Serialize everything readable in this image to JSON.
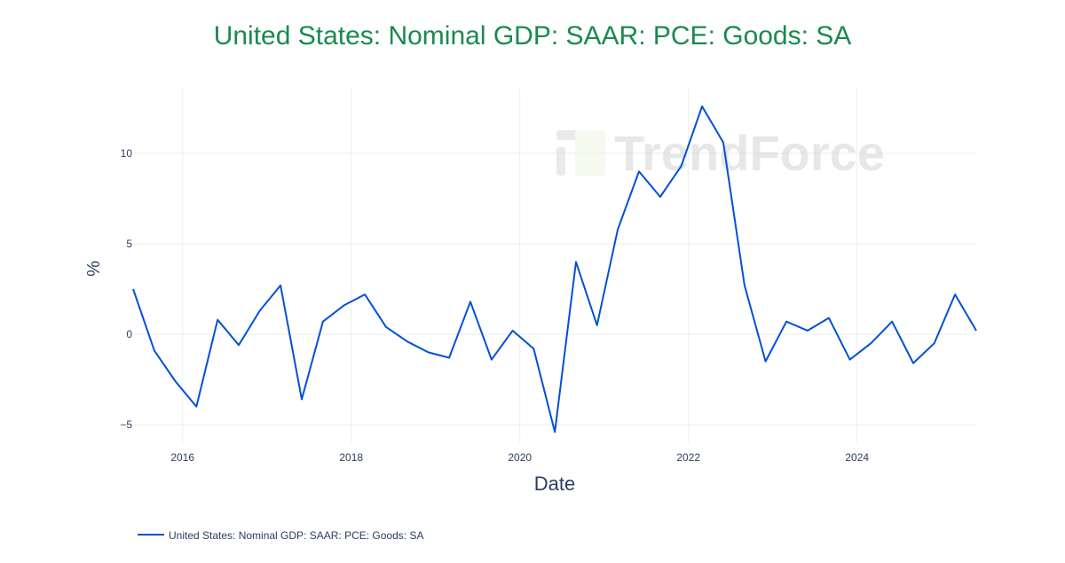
{
  "chart_data": {
    "type": "line",
    "title": "United States: Nominal GDP: SAAR: PCE: Goods: SA",
    "xlabel": "Date",
    "ylabel": "%",
    "xlim": [
      "2015-06-01",
      "2025-06-01"
    ],
    "ylim": [
      -5.9,
      13.3
    ],
    "x_ticks": [
      "2016",
      "2018",
      "2020",
      "2022",
      "2024"
    ],
    "y_ticks": [
      {
        "value": -5,
        "label": "−5"
      },
      {
        "value": 0,
        "label": "0"
      },
      {
        "value": 5,
        "label": "5"
      },
      {
        "value": 10,
        "label": "10"
      }
    ],
    "grid": true,
    "legend_position": "bottom-left",
    "watermark": "TrendForce",
    "colors": {
      "title": "#1a8a4f",
      "line": "#0050d8",
      "grid": "#eeeeee",
      "axis_text": "#2a3f5f"
    },
    "series": [
      {
        "name": "United States: Nominal GDP: SAAR: PCE: Goods: SA",
        "x": [
          "2015-06-01",
          "2015-09-01",
          "2015-12-01",
          "2016-03-01",
          "2016-06-01",
          "2016-09-01",
          "2016-12-01",
          "2017-03-01",
          "2017-06-01",
          "2017-09-01",
          "2017-12-01",
          "2018-03-01",
          "2018-06-01",
          "2018-09-01",
          "2018-12-01",
          "2019-03-01",
          "2019-06-01",
          "2019-09-01",
          "2019-12-01",
          "2020-03-01",
          "2020-06-01",
          "2020-09-01",
          "2020-12-01",
          "2021-03-01",
          "2021-06-01",
          "2021-09-01",
          "2021-12-01",
          "2022-03-01",
          "2022-06-01",
          "2022-09-01",
          "2022-12-01",
          "2023-03-01",
          "2023-06-01",
          "2023-09-01",
          "2023-12-01",
          "2024-03-01",
          "2024-06-01",
          "2024-09-01",
          "2024-12-01",
          "2025-03-01",
          "2025-06-01"
        ],
        "values": [
          2.5,
          -0.9,
          -2.6,
          -4.0,
          0.8,
          -0.6,
          1.3,
          2.7,
          -3.6,
          0.7,
          1.6,
          2.2,
          0.4,
          -0.4,
          -1.0,
          -1.3,
          1.8,
          -1.4,
          0.2,
          -0.8,
          -5.4,
          4.0,
          0.5,
          5.8,
          9.0,
          7.6,
          9.3,
          12.6,
          10.6,
          2.7,
          -1.5,
          0.7,
          0.2,
          0.9,
          -1.4,
          -0.5,
          0.7,
          -1.6,
          -0.5,
          2.2,
          0.2
        ]
      }
    ]
  }
}
